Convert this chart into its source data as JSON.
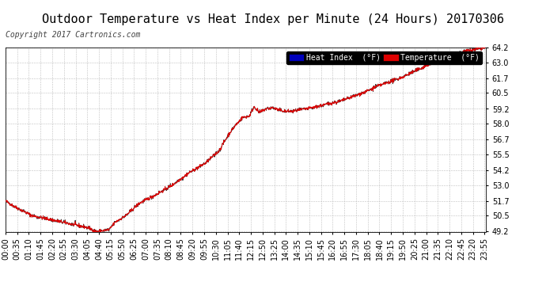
{
  "title": "Outdoor Temperature vs Heat Index per Minute (24 Hours) 20170306",
  "copyright": "Copyright 2017 Cartronics.com",
  "bg_color": "#ffffff",
  "plot_bg_color": "#ffffff",
  "grid_color": "#c0c0c0",
  "line_color_temp": "#dd0000",
  "line_color_heat": "#333333",
  "legend_heat_bg": "#0000bb",
  "legend_temp_bg": "#dd0000",
  "legend_heat_label": "Heat Index  (°F)",
  "legend_temp_label": "Temperature  (°F)",
  "ylim_min": 49.2,
  "ylim_max": 64.2,
  "yticks": [
    49.2,
    50.5,
    51.7,
    53.0,
    54.2,
    55.5,
    56.7,
    58.0,
    59.2,
    60.5,
    61.7,
    63.0,
    64.2
  ],
  "title_fontsize": 11,
  "copyright_fontsize": 7,
  "tick_fontsize": 7,
  "legend_fontsize": 7,
  "xtick_interval": 35,
  "total_minutes": 1440,
  "keypoints_x": [
    0,
    30,
    80,
    150,
    250,
    270,
    310,
    330,
    360,
    400,
    450,
    500,
    550,
    600,
    640,
    670,
    690,
    710,
    730,
    745,
    760,
    780,
    800,
    820,
    840,
    860,
    880,
    900,
    920,
    950,
    980,
    1000,
    1020,
    1050,
    1080,
    1110,
    1150,
    1190,
    1220,
    1260,
    1300,
    1340,
    1380,
    1420,
    1439
  ],
  "keypoints_y": [
    51.7,
    51.2,
    50.5,
    50.1,
    49.5,
    49.2,
    49.35,
    50.0,
    50.5,
    51.5,
    52.2,
    53.0,
    54.0,
    54.8,
    55.8,
    57.2,
    57.9,
    58.5,
    58.6,
    59.4,
    58.9,
    59.2,
    59.3,
    59.1,
    59.0,
    59.0,
    59.1,
    59.2,
    59.3,
    59.5,
    59.7,
    59.8,
    60.0,
    60.3,
    60.6,
    61.0,
    61.4,
    61.8,
    62.2,
    62.7,
    63.2,
    63.6,
    63.9,
    64.1,
    64.2
  ]
}
